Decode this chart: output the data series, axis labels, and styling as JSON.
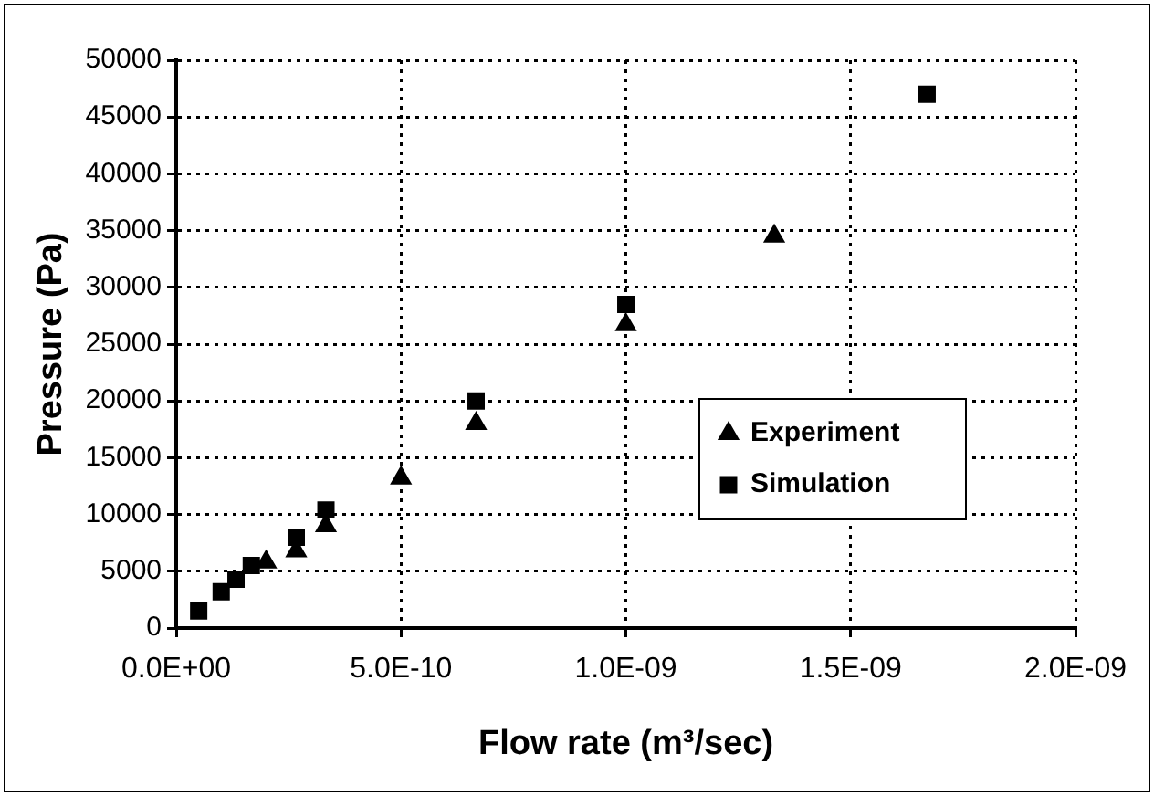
{
  "chart_data": {
    "type": "scatter",
    "xlabel": "Flow rate (m³/sec)",
    "ylabel": "Pressure (Pa)",
    "series": [
      {
        "name": "Experiment",
        "color": "#000000",
        "marker": "triangle",
        "x": [
          2e-10,
          2.67e-10,
          3.33e-10,
          5e-10,
          6.67e-10,
          1e-09,
          1.33e-09
        ],
        "values": [
          5800,
          6800,
          9000,
          13200,
          18000,
          26700,
          34500
        ]
      },
      {
        "name": "Simulation",
        "color": "#000000",
        "marker": "square",
        "x": [
          5e-11,
          1e-10,
          1.33e-10,
          1.67e-10,
          2.67e-10,
          3.33e-10,
          6.67e-10,
          1e-09,
          1.67e-09
        ],
        "values": [
          1500,
          3200,
          4300,
          5500,
          8000,
          10400,
          20000,
          28500,
          47000
        ]
      }
    ],
    "xlim": [
      0,
      2e-09
    ],
    "xticks": [
      {
        "value": 0,
        "label": "0.0E+00"
      },
      {
        "value": 5e-10,
        "label": "5.0E-10"
      },
      {
        "value": 1e-09,
        "label": "1.0E-09"
      },
      {
        "value": 1.5e-09,
        "label": "1.5E-09"
      },
      {
        "value": 2e-09,
        "label": "2.0E-09"
      }
    ],
    "ylim": [
      0,
      50000
    ],
    "yticks": [
      0,
      5000,
      10000,
      15000,
      20000,
      25000,
      30000,
      35000,
      40000,
      45000,
      50000
    ],
    "grid": true,
    "legend": "center right"
  }
}
